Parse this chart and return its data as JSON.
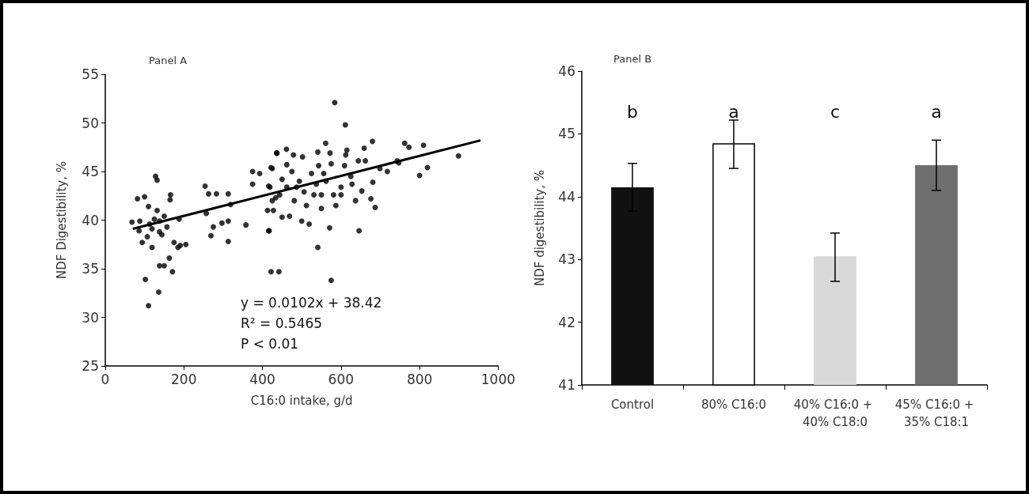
{
  "chart_data": [
    {
      "type": "scatter",
      "xlabel": "C16:0 intake, g/d",
      "ylabel": "NDF Digestibility, %",
      "xlim": [
        0,
        1000
      ],
      "xticks": [
        0,
        200,
        400,
        600,
        800,
        1000
      ],
      "ylim": [
        25,
        55
      ],
      "yticks": [
        25,
        30,
        35,
        40,
        45,
        50,
        55
      ],
      "grid": false,
      "annotations": [
        "Panel A",
        "y = 0.0102x + 38.42",
        "R² = 0.5465",
        "P < 0.01"
      ],
      "series": [
        {
          "type": "scatter",
          "marker": "circle",
          "color": "#000000",
          "x": [
            68,
            82,
            100,
            86,
            110,
            128,
            132,
            166,
            165,
            188,
            205,
            185,
            171,
            136,
            110,
            102,
            138,
            150,
            119,
            163,
            94,
            119,
            138,
            150,
            144,
            132,
            138,
            175,
            191,
            113,
            125,
            157,
            88,
            107,
            254,
            263,
            283,
            313,
            319,
            257,
            275,
            269,
            297,
            313,
            313,
            358,
            375,
            375,
            393,
            416,
            422,
            436,
            416,
            422,
            428,
            434,
            584,
            611,
            437,
            461,
            479,
            502,
            541,
            561,
            572,
            615,
            659,
            680,
            762,
            773,
            810,
            899,
            800,
            820,
            747,
            718,
            681,
            687,
            676,
            653,
            637,
            646,
            571,
            541,
            442,
            575,
            417,
            413,
            419,
            425,
            444,
            462,
            462,
            475,
            481,
            494,
            506,
            512,
            525,
            537,
            543,
            550,
            562,
            575,
            581,
            587,
            600,
            609,
            612,
            625,
            628,
            469,
            450,
            500,
            519,
            550,
            600,
            531,
            450,
            425,
            644,
            662,
            699,
            743,
            487,
            556
          ],
          "values": [
            39.8,
            42.2,
            42.4,
            38.9,
            41.4,
            44.5,
            44.1,
            42.6,
            42.1,
            40.1,
            37.5,
            37.2,
            34.7,
            32.6,
            31.2,
            33.9,
            35.3,
            35.3,
            37.2,
            36.1,
            37.7,
            39.1,
            39.9,
            40.4,
            38.5,
            41.0,
            38.8,
            37.7,
            37.4,
            39.6,
            40.1,
            39.3,
            39.9,
            38.3,
            43.5,
            42.7,
            42.7,
            42.7,
            41.6,
            40.7,
            39.3,
            38.4,
            39.7,
            39.9,
            37.8,
            39.5,
            45.0,
            43.7,
            44.8,
            43.5,
            45.4,
            46.9,
            38.9,
            34.7,
            41.0,
            42.3,
            52.1,
            49.8,
            46.9,
            47.3,
            46.7,
            46.5,
            47.0,
            47.9,
            46.9,
            47.2,
            47.4,
            48.1,
            47.9,
            47.5,
            47.7,
            46.6,
            44.6,
            45.4,
            45.9,
            45.0,
            43.9,
            41.3,
            42.2,
            43.0,
            42.0,
            38.9,
            39.2,
            37.2,
            34.7,
            33.8,
            38.9,
            41.0,
            43.4,
            45.3,
            42.6,
            43.4,
            45.7,
            45.0,
            42.0,
            44.0,
            42.9,
            41.5,
            44.8,
            43.7,
            45.6,
            42.6,
            44.0,
            45.8,
            42.6,
            41.5,
            43.4,
            45.6,
            46.7,
            44.5,
            43.7,
            40.4,
            40.3,
            39.9,
            39.6,
            41.2,
            42.6,
            42.6,
            44.2,
            42.0,
            46.1,
            46.1,
            45.3,
            46.1,
            43.4,
            44.8
          ]
        },
        {
          "type": "line",
          "marker": "none",
          "color": "#000000",
          "x": [
            70,
            955
          ],
          "values": [
            39.1,
            48.2
          ]
        }
      ]
    },
    {
      "type": "bar",
      "ylabel": "NDF digestibility, %",
      "ylim": [
        41,
        46
      ],
      "yticks": [
        41,
        42,
        43,
        44,
        45,
        46
      ],
      "grid": false,
      "categories": [
        "Control",
        "80% C16:0",
        "40% C16:0 + 40% C18:0",
        "45% C16:0 + 35% C18:1"
      ],
      "annotations": [
        "Panel B",
        "b",
        "a",
        "c",
        "a"
      ],
      "values": [
        44.15,
        44.85,
        43.05,
        44.5
      ],
      "errors": [
        [
          43.77,
          44.53
        ],
        [
          44.45,
          45.22
        ],
        [
          42.65,
          43.42
        ],
        [
          44.1,
          44.9
        ]
      ],
      "colors": [
        "#111111",
        "#ffffff",
        "#d9d9d9",
        "#6e6e6e"
      ]
    }
  ]
}
